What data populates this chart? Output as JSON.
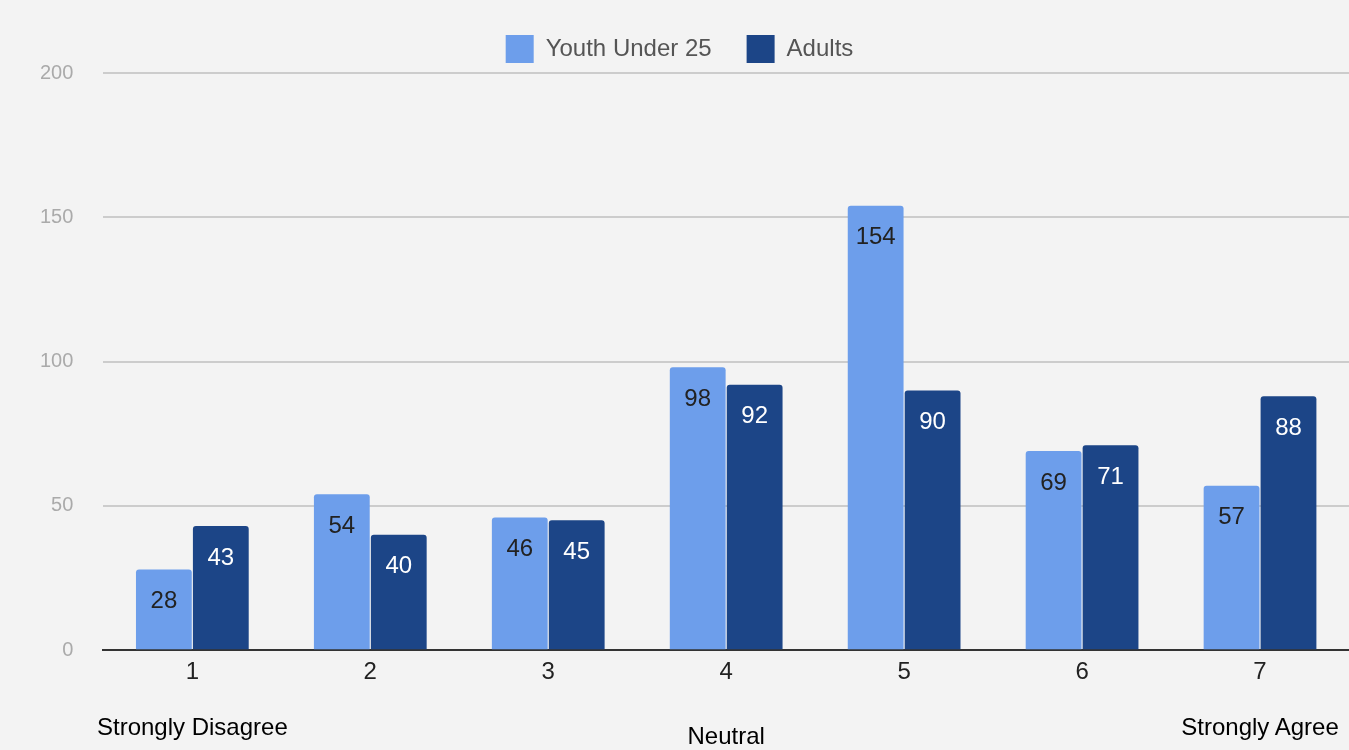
{
  "chart_data": {
    "type": "bar",
    "categories": [
      "1",
      "2",
      "3",
      "4",
      "5",
      "6",
      "7"
    ],
    "series": [
      {
        "name": "Youth Under 25",
        "color": "#6d9eeb",
        "values": [
          28,
          54,
          46,
          98,
          154,
          69,
          57
        ]
      },
      {
        "name": "Adults",
        "color": "#1c4587",
        "values": [
          43,
          40,
          45,
          92,
          90,
          71,
          88
        ]
      }
    ],
    "ylim": [
      0,
      200
    ],
    "yticks": [
      0,
      50,
      100,
      150,
      200
    ],
    "grid": "y",
    "legend": "top",
    "data_labels": true,
    "annotations": [
      "Strongly Disagree",
      "Neutral",
      "Strongly Agree"
    ]
  }
}
